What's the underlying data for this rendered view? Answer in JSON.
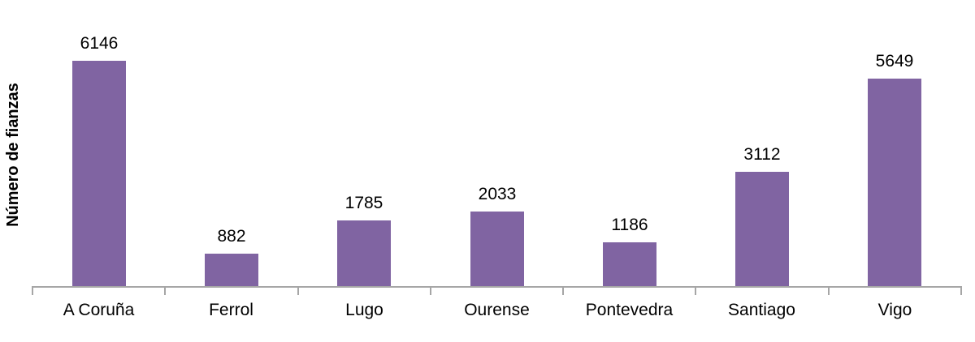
{
  "chart_data": {
    "type": "bar",
    "title": "",
    "categories": [
      "A Coruña",
      "Ferrol",
      "Lugo",
      "Ourense",
      "Pontevedra",
      "Santiago",
      "Vigo"
    ],
    "values": [
      6146,
      882,
      1785,
      2033,
      1186,
      3112,
      5649
    ],
    "xlabel": "",
    "ylabel": "Número de fianzas",
    "ylim": [
      0,
      7800
    ],
    "grid": false,
    "legend": "none",
    "data_labels": true,
    "colors": {
      "bar": "#8064A2",
      "axis": "#A6A6A6",
      "text": "#000000"
    }
  }
}
